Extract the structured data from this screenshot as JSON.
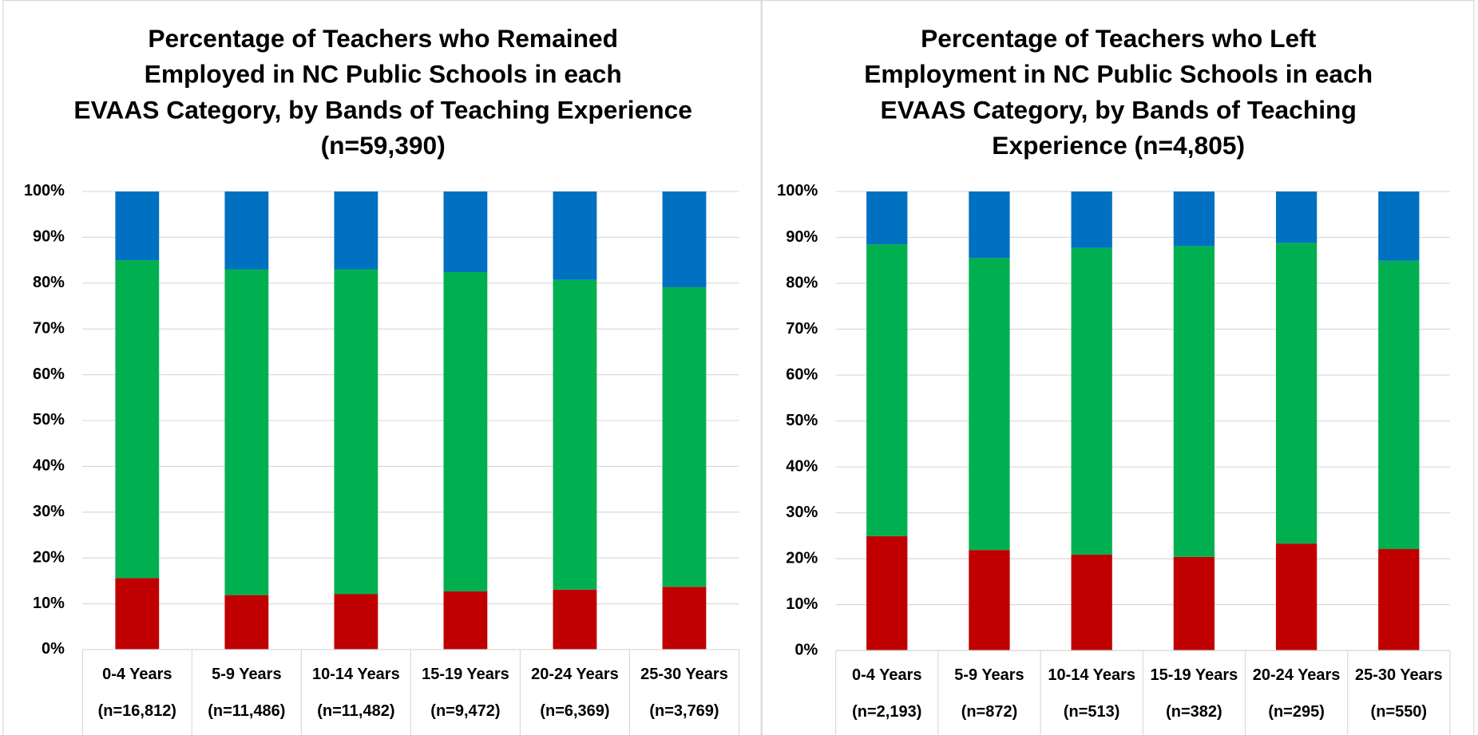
{
  "chart_data": [
    {
      "type": "stacked-bar",
      "title": [
        "Percentage of Teachers who Remained",
        "Employed in NC Public Schools in each",
        "EVAAS Category, by Bands of Teaching Experience",
        "(n=59,390)"
      ],
      "categories": [
        "0-4 Years",
        "5-9 Years",
        "10-14 Years",
        "15-19 Years",
        "20-24 Years",
        "25-30 Years"
      ],
      "category_notes": [
        "(n=16,812)",
        "(n=11,486)",
        "(n=11,482)",
        "(n=9,472)",
        "(n=6,369)",
        "(n=3,769)"
      ],
      "series": [
        {
          "color": "#c00000",
          "values": [
            15.6,
            11.9,
            12.1,
            12.7,
            13.1,
            13.7
          ]
        },
        {
          "color": "#00b050",
          "values": [
            69.4,
            71.1,
            70.9,
            69.7,
            67.6,
            65.4
          ]
        },
        {
          "color": "#0070c0",
          "values": [
            15.0,
            17.0,
            17.0,
            17.6,
            19.3,
            20.9
          ]
        }
      ],
      "ylim": [
        0,
        100
      ],
      "yticks": [
        {
          "value": 0,
          "label": "0%"
        },
        {
          "value": 10,
          "label": "10%"
        },
        {
          "value": 20,
          "label": "20%"
        },
        {
          "value": 30,
          "label": "30%"
        },
        {
          "value": 40,
          "label": "40%"
        },
        {
          "value": 50,
          "label": "50%"
        },
        {
          "value": 60,
          "label": "60%"
        },
        {
          "value": 70,
          "label": "70%"
        },
        {
          "value": 80,
          "label": "80%"
        },
        {
          "value": 90,
          "label": "90%"
        },
        {
          "value": 100,
          "label": "100%"
        }
      ],
      "grid": true
    },
    {
      "type": "stacked-bar",
      "title": [
        "Percentage of Teachers who Left",
        "Employment in NC Public Schools in each",
        "EVAAS Category, by Bands of Teaching",
        "Experience (n=4,805)"
      ],
      "categories": [
        "0-4 Years",
        "5-9 Years",
        "10-14 Years",
        "15-19 Years",
        "20-24 Years",
        "25-30 Years"
      ],
      "category_notes": [
        "(n=2,193)",
        "(n=872)",
        "(n=513)",
        "(n=382)",
        "(n=295)",
        "(n=550)"
      ],
      "series": [
        {
          "color": "#c00000",
          "values": [
            24.9,
            21.9,
            20.9,
            20.4,
            23.3,
            22.1
          ]
        },
        {
          "color": "#00b050",
          "values": [
            63.6,
            63.6,
            66.8,
            67.7,
            65.5,
            62.8
          ]
        },
        {
          "color": "#0070c0",
          "values": [
            11.5,
            14.5,
            12.3,
            11.9,
            11.2,
            15.1
          ]
        }
      ],
      "ylim": [
        0,
        100
      ],
      "yticks": [
        {
          "value": 0,
          "label": "0%"
        },
        {
          "value": 10,
          "label": "10%"
        },
        {
          "value": 20,
          "label": "20%"
        },
        {
          "value": 30,
          "label": "30%"
        },
        {
          "value": 40,
          "label": "40%"
        },
        {
          "value": 50,
          "label": "50%"
        },
        {
          "value": 60,
          "label": "60%"
        },
        {
          "value": 70,
          "label": "70%"
        },
        {
          "value": 80,
          "label": "80%"
        },
        {
          "value": 90,
          "label": "90%"
        },
        {
          "value": 100,
          "label": "100%"
        }
      ],
      "grid": true
    }
  ]
}
